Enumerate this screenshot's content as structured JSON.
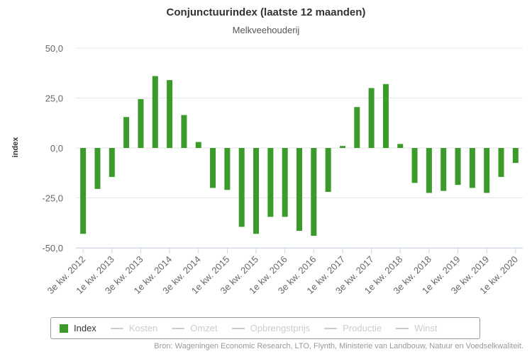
{
  "chart_data": {
    "type": "bar",
    "title": "Conjunctuurindex (laatste 12 maanden)",
    "subtitle": "Melkveehouderij",
    "ylabel": "index",
    "xlabel": "",
    "ylim": [
      -50,
      50
    ],
    "yticks": [
      "50,0",
      "25,0",
      "0,0",
      "-25,0",
      "-50,0"
    ],
    "ytick_values": [
      50,
      25,
      0,
      -25,
      -50
    ],
    "grid": true,
    "legend_position": "bottom",
    "x_tick_labels": [
      "3e kw. 2012",
      "1e kw. 2013",
      "3e kw. 2013",
      "1e kw. 2014",
      "3e kw. 2014",
      "1e kw. 2015",
      "3e kw. 2015",
      "1e kw. 2016",
      "3e kw. 2016",
      "1e kw. 2017",
      "3e kw. 2017",
      "1e kw. 2018",
      "3e kw. 2018",
      "1e kw. 2019",
      "3e kw. 2019",
      "1e kw. 2020"
    ],
    "series": [
      {
        "name": "Index",
        "color": "#3a9a2a",
        "values": [
          -43,
          -20.5,
          -14.5,
          15.5,
          24.5,
          36,
          34,
          16.5,
          3,
          -20,
          -21,
          -39.5,
          -43,
          -34.5,
          -34.5,
          -41.5,
          -44,
          -22,
          1,
          20.5,
          30,
          32,
          2,
          -17.5,
          -22.5,
          -21.5,
          -18.5,
          -20,
          -22.5,
          -14.5,
          -7.5
        ]
      }
    ]
  },
  "legend": {
    "items": [
      {
        "label": "Index",
        "color": "#3a9a2a",
        "active": true
      },
      {
        "label": "Kosten",
        "active": false
      },
      {
        "label": "Omzet",
        "active": false
      },
      {
        "label": "Opbrengstprijs",
        "active": false
      },
      {
        "label": "Productie",
        "active": false
      },
      {
        "label": "Winst",
        "active": false
      }
    ]
  },
  "credits": "Bron: Wageningen Economic Research, LTO, Flynth, Ministerie van Landbouw, Natuur en Voedselkwaliteit."
}
